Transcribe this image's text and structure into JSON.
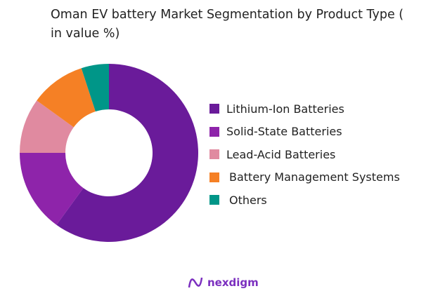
{
  "chart_data": {
    "type": "pie",
    "donut": true,
    "title": "Oman EV battery Market Segmentation by Product Type ( in value %)",
    "categories": [
      "Lithium-Ion Batteries",
      "Solid-State Batteries",
      "Lead-Acid Batteries",
      "Battery Management Systems",
      "Others"
    ],
    "values": [
      60,
      15,
      10,
      10,
      5
    ],
    "colors": [
      "#6a1b9a",
      "#8e24aa",
      "#e08aa0",
      "#f58025",
      "#009688"
    ],
    "legend_position": "right"
  },
  "logo": {
    "text": "nexdigm",
    "color": "#7b2fbf"
  }
}
